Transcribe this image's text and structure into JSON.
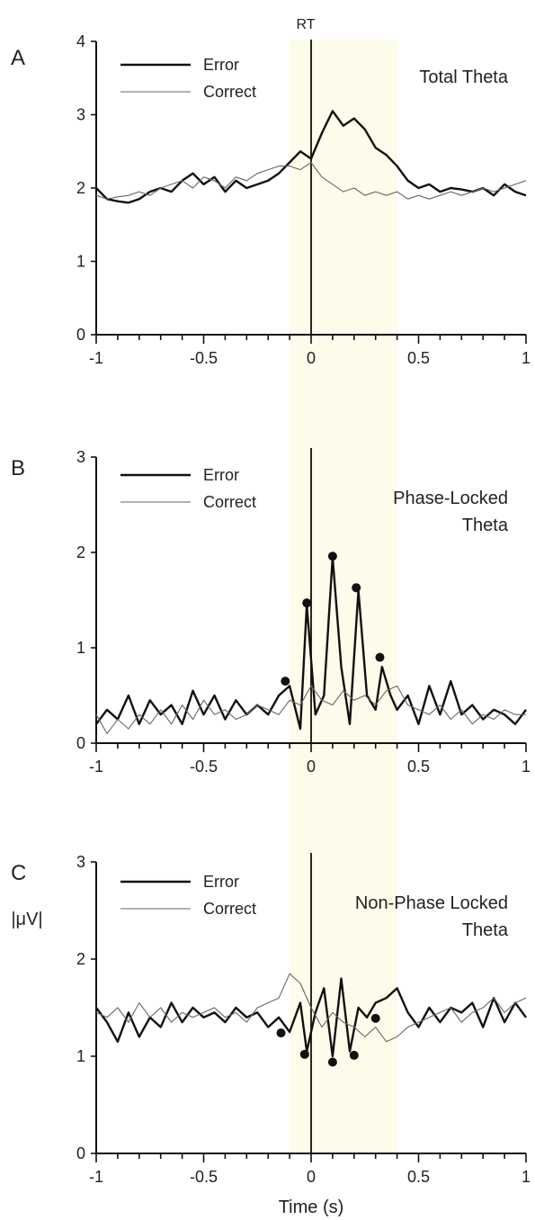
{
  "rt_label": "RT",
  "xlabel": "Time (s)",
  "ylabel": "|μV|",
  "legend": {
    "error": "Error",
    "correct": "Correct"
  },
  "chart_data": [
    {
      "type": "line",
      "panel": "A",
      "title": [
        "Total Theta"
      ],
      "xlim": [
        -1,
        1
      ],
      "ylim": [
        0,
        4
      ],
      "yticks": [
        0,
        1,
        2,
        3,
        4
      ],
      "xticks": [
        -1,
        -0.5,
        0,
        0.5,
        1
      ],
      "xtick_labels": [
        "-1",
        "-0.5",
        "0",
        "0.5",
        "1"
      ],
      "shaded_region": [
        -0.1,
        0.4
      ],
      "vertical_line": 0,
      "grid": false,
      "legend_position": "top-left",
      "series": [
        {
          "name": "Error",
          "x": [
            -1,
            -0.95,
            -0.9,
            -0.85,
            -0.8,
            -0.75,
            -0.7,
            -0.65,
            -0.6,
            -0.55,
            -0.5,
            -0.45,
            -0.4,
            -0.35,
            -0.3,
            -0.25,
            -0.2,
            -0.15,
            -0.1,
            -0.05,
            0,
            0.05,
            0.1,
            0.15,
            0.2,
            0.25,
            0.3,
            0.35,
            0.4,
            0.45,
            0.5,
            0.55,
            0.6,
            0.65,
            0.7,
            0.75,
            0.8,
            0.85,
            0.9,
            0.95,
            1
          ],
          "values": [
            2.0,
            1.85,
            1.82,
            1.8,
            1.85,
            1.95,
            2.0,
            1.95,
            2.1,
            2.2,
            2.05,
            2.15,
            1.95,
            2.1,
            2.0,
            2.05,
            2.1,
            2.2,
            2.35,
            2.5,
            2.4,
            2.75,
            3.05,
            2.85,
            2.95,
            2.8,
            2.55,
            2.45,
            2.3,
            2.1,
            2.0,
            2.05,
            1.95,
            2.0,
            1.98,
            1.95,
            2.0,
            1.9,
            2.05,
            1.95,
            1.9
          ]
        },
        {
          "name": "Correct",
          "x": [
            -1,
            -0.95,
            -0.9,
            -0.85,
            -0.8,
            -0.75,
            -0.7,
            -0.65,
            -0.6,
            -0.55,
            -0.5,
            -0.45,
            -0.4,
            -0.35,
            -0.3,
            -0.25,
            -0.2,
            -0.15,
            -0.1,
            -0.05,
            0,
            0.05,
            0.1,
            0.15,
            0.2,
            0.25,
            0.3,
            0.35,
            0.4,
            0.45,
            0.5,
            0.55,
            0.6,
            0.65,
            0.7,
            0.75,
            0.8,
            0.85,
            0.9,
            0.95,
            1
          ],
          "values": [
            1.9,
            1.85,
            1.88,
            1.9,
            1.95,
            1.9,
            2.0,
            2.05,
            2.1,
            2.0,
            2.15,
            2.1,
            2.0,
            2.15,
            2.1,
            2.2,
            2.25,
            2.3,
            2.3,
            2.25,
            2.35,
            2.15,
            2.05,
            1.95,
            2.0,
            1.9,
            1.95,
            1.9,
            1.95,
            1.85,
            1.9,
            1.85,
            1.9,
            1.95,
            1.9,
            1.95,
            2.0,
            1.95,
            2.0,
            2.05,
            2.1
          ]
        }
      ],
      "dots": []
    },
    {
      "type": "line",
      "panel": "B",
      "title": [
        "Phase-Locked",
        "Theta"
      ],
      "xlim": [
        -1,
        1
      ],
      "ylim": [
        0,
        3
      ],
      "yticks": [
        0,
        1,
        2,
        3
      ],
      "xticks": [
        -1,
        -0.5,
        0,
        0.5,
        1
      ],
      "xtick_labels": [
        "-1",
        "-0.5",
        "0",
        "0.5",
        "1"
      ],
      "shaded_region": [
        -0.1,
        0.4
      ],
      "vertical_line": 0,
      "grid": false,
      "legend_position": "top-left",
      "series": [
        {
          "name": "Error",
          "x": [
            -1,
            -0.95,
            -0.9,
            -0.85,
            -0.8,
            -0.75,
            -0.7,
            -0.65,
            -0.6,
            -0.55,
            -0.5,
            -0.45,
            -0.4,
            -0.35,
            -0.3,
            -0.25,
            -0.2,
            -0.15,
            -0.1,
            -0.05,
            -0.02,
            0.02,
            0.06,
            0.1,
            0.14,
            0.18,
            0.22,
            0.26,
            0.3,
            0.33,
            0.37,
            0.4,
            0.45,
            0.5,
            0.55,
            0.6,
            0.65,
            0.7,
            0.75,
            0.8,
            0.85,
            0.9,
            0.95,
            1
          ],
          "values": [
            0.2,
            0.35,
            0.25,
            0.5,
            0.2,
            0.45,
            0.3,
            0.4,
            0.2,
            0.55,
            0.3,
            0.5,
            0.25,
            0.45,
            0.3,
            0.4,
            0.3,
            0.5,
            0.6,
            0.15,
            1.45,
            0.3,
            0.5,
            1.95,
            0.8,
            0.2,
            1.6,
            0.5,
            0.35,
            0.8,
            0.5,
            0.35,
            0.5,
            0.2,
            0.6,
            0.3,
            0.65,
            0.3,
            0.4,
            0.25,
            0.35,
            0.3,
            0.2,
            0.35
          ]
        },
        {
          "name": "Correct",
          "x": [
            -1,
            -0.95,
            -0.9,
            -0.85,
            -0.8,
            -0.75,
            -0.7,
            -0.65,
            -0.6,
            -0.55,
            -0.5,
            -0.45,
            -0.4,
            -0.35,
            -0.3,
            -0.25,
            -0.2,
            -0.15,
            -0.1,
            -0.05,
            0,
            0.05,
            0.1,
            0.15,
            0.2,
            0.25,
            0.3,
            0.35,
            0.4,
            0.45,
            0.5,
            0.55,
            0.6,
            0.65,
            0.7,
            0.75,
            0.8,
            0.85,
            0.9,
            0.95,
            1
          ],
          "values": [
            0.3,
            0.1,
            0.25,
            0.15,
            0.3,
            0.2,
            0.35,
            0.2,
            0.4,
            0.25,
            0.45,
            0.3,
            0.35,
            0.25,
            0.3,
            0.4,
            0.35,
            0.3,
            0.45,
            0.4,
            0.6,
            0.45,
            0.4,
            0.55,
            0.45,
            0.5,
            0.4,
            0.55,
            0.6,
            0.4,
            0.35,
            0.3,
            0.4,
            0.25,
            0.35,
            0.2,
            0.3,
            0.25,
            0.35,
            0.3,
            0.3
          ]
        }
      ],
      "dots": [
        {
          "x": -0.12,
          "y": 0.65
        },
        {
          "x": -0.02,
          "y": 1.47
        },
        {
          "x": 0.1,
          "y": 1.96
        },
        {
          "x": 0.21,
          "y": 1.63
        },
        {
          "x": 0.32,
          "y": 0.9
        }
      ]
    },
    {
      "type": "line",
      "panel": "C",
      "title": [
        "Non-Phase Locked",
        "Theta"
      ],
      "xlim": [
        -1,
        1
      ],
      "ylim": [
        0,
        3
      ],
      "yticks": [
        0,
        1,
        2,
        3
      ],
      "xticks": [
        -1,
        -0.5,
        0,
        0.5,
        1
      ],
      "xtick_labels": [
        "-1",
        "-0.5",
        "0",
        "0.5",
        "1"
      ],
      "shaded_region": [
        -0.1,
        0.4
      ],
      "vertical_line": 0,
      "grid": false,
      "legend_position": "top-left",
      "series": [
        {
          "name": "Error",
          "x": [
            -1,
            -0.95,
            -0.9,
            -0.85,
            -0.8,
            -0.75,
            -0.7,
            -0.65,
            -0.6,
            -0.55,
            -0.5,
            -0.45,
            -0.4,
            -0.35,
            -0.3,
            -0.25,
            -0.2,
            -0.15,
            -0.1,
            -0.05,
            -0.02,
            0.02,
            0.06,
            0.1,
            0.14,
            0.18,
            0.22,
            0.26,
            0.3,
            0.35,
            0.4,
            0.45,
            0.5,
            0.55,
            0.6,
            0.65,
            0.7,
            0.75,
            0.8,
            0.85,
            0.9,
            0.95,
            1
          ],
          "values": [
            1.5,
            1.35,
            1.15,
            1.45,
            1.2,
            1.4,
            1.3,
            1.55,
            1.35,
            1.5,
            1.4,
            1.45,
            1.35,
            1.5,
            1.4,
            1.45,
            1.3,
            1.4,
            1.25,
            1.55,
            1.05,
            1.45,
            1.7,
            1.0,
            1.8,
            1.05,
            1.5,
            1.4,
            1.55,
            1.6,
            1.7,
            1.45,
            1.3,
            1.5,
            1.35,
            1.5,
            1.45,
            1.55,
            1.3,
            1.6,
            1.35,
            1.55,
            1.4
          ]
        },
        {
          "name": "Correct",
          "x": [
            -1,
            -0.95,
            -0.9,
            -0.85,
            -0.8,
            -0.75,
            -0.7,
            -0.65,
            -0.6,
            -0.55,
            -0.5,
            -0.45,
            -0.4,
            -0.35,
            -0.3,
            -0.25,
            -0.2,
            -0.15,
            -0.1,
            -0.05,
            0,
            0.05,
            0.1,
            0.15,
            0.2,
            0.25,
            0.3,
            0.35,
            0.4,
            0.45,
            0.5,
            0.55,
            0.6,
            0.65,
            0.7,
            0.75,
            0.8,
            0.85,
            0.9,
            0.95,
            1
          ],
          "values": [
            1.45,
            1.4,
            1.5,
            1.35,
            1.55,
            1.4,
            1.5,
            1.35,
            1.45,
            1.4,
            1.45,
            1.5,
            1.4,
            1.45,
            1.35,
            1.5,
            1.55,
            1.6,
            1.85,
            1.75,
            1.5,
            1.3,
            1.45,
            1.35,
            1.3,
            1.2,
            1.3,
            1.15,
            1.2,
            1.3,
            1.35,
            1.4,
            1.45,
            1.5,
            1.35,
            1.45,
            1.5,
            1.6,
            1.45,
            1.55,
            1.6
          ]
        }
      ],
      "dots": [
        {
          "x": -0.14,
          "y": 1.24
        },
        {
          "x": -0.03,
          "y": 1.02
        },
        {
          "x": 0.1,
          "y": 0.94
        },
        {
          "x": 0.2,
          "y": 1.01
        },
        {
          "x": 0.3,
          "y": 1.39
        }
      ]
    }
  ]
}
